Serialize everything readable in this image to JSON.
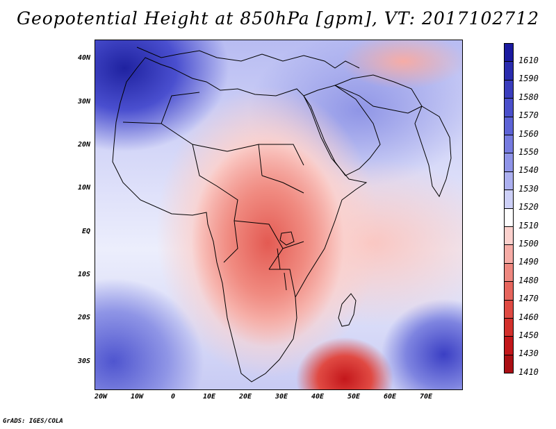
{
  "title": "Geopotential Height at 850hPa [gpm], VT: 2017102712",
  "footer": "GrADS: IGES/COLA",
  "y_ticks": [
    "40N",
    "30N",
    "20N",
    "10N",
    "EQ",
    "10S",
    "20S",
    "30S"
  ],
  "x_ticks": [
    "20W",
    "10W",
    "0",
    "10E",
    "20E",
    "30E",
    "40E",
    "50E",
    "60E",
    "70E"
  ],
  "colorbar": {
    "labels": [
      "1610",
      "1590",
      "1580",
      "1570",
      "1560",
      "1550",
      "1540",
      "1530",
      "1520",
      "1510",
      "1500",
      "1490",
      "1480",
      "1470",
      "1460",
      "1450",
      "1430",
      "1410"
    ],
    "colors": [
      "#1b1aa0",
      "#2a2cae",
      "#3a3dbd",
      "#4a4fcb",
      "#5d63d6",
      "#767be0",
      "#8f94e8",
      "#acb0f0",
      "#cdd0f7",
      "#ffffff",
      "#fbd1cd",
      "#f6aca6",
      "#ee8880",
      "#e6655d",
      "#df4a43",
      "#d2302c",
      "#c2171b",
      "#aa0f14"
    ]
  }
}
